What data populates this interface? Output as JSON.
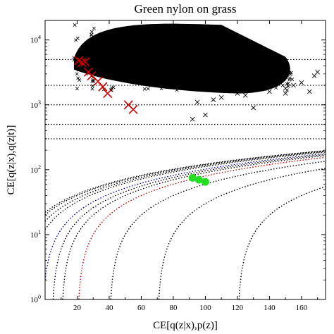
{
  "chart_data": {
    "type": "scatter",
    "title": "Green nylon on grass",
    "xlabel": "CE[q(z|x),p(z)]",
    "ylabel": "CE[q(z|x),q(z|t)]",
    "xlim": [
      0,
      175
    ],
    "ylim": [
      1,
      20000
    ],
    "yscale": "log",
    "grid": false,
    "x_ticks": [
      20,
      40,
      60,
      80,
      100,
      120,
      140,
      160
    ],
    "y_ticks": [
      1,
      10,
      100,
      1000,
      10000
    ],
    "y_tick_labels": [
      {
        "base": "10",
        "exp": "0"
      },
      {
        "base": "10",
        "exp": "1"
      },
      {
        "base": "10",
        "exp": "2"
      },
      {
        "base": "10",
        "exp": "3"
      },
      {
        "base": "10",
        "exp": "4"
      }
    ],
    "reference_lines": {
      "style": "dotted",
      "horizontal_levels": [
        5000,
        2000,
        1000,
        500,
        300
      ],
      "curves": [
        {
          "offset": 20,
          "color": "#000000"
        },
        {
          "offset": 22,
          "color": "#000000"
        },
        {
          "offset": 16,
          "color": "#000000"
        },
        {
          "offset": 12,
          "color": "#000000"
        },
        {
          "offset": 2,
          "color": "#0000aa"
        },
        {
          "offset": -4,
          "color": "#000000"
        },
        {
          "offset": -10,
          "color": "#000000"
        },
        {
          "offset": -20,
          "color": "#cc0000"
        },
        {
          "offset": -40,
          "color": "#000000"
        },
        {
          "offset": -70,
          "color": "#000000"
        },
        {
          "offset": -120,
          "color": "#000000"
        }
      ]
    },
    "series": [
      {
        "marker": "x",
        "color": "#000000",
        "cloud": {
          "x_min": 18,
          "x_max": 158,
          "y_min": 1500,
          "y_max": 18000
        },
        "points": [
          [
            95,
            1100
          ],
          [
            105,
            1200
          ],
          [
            110,
            1300
          ],
          [
            120,
            1500
          ],
          [
            130,
            900
          ],
          [
            125,
            1400
          ],
          [
            140,
            1600
          ],
          [
            150,
            1800
          ],
          [
            155,
            2000
          ],
          [
            160,
            2200
          ],
          [
            165,
            1600
          ],
          [
            168,
            2800
          ],
          [
            170,
            3200
          ],
          [
            100,
            700
          ],
          [
            92,
            600
          ],
          [
            130,
            1800
          ],
          [
            145,
            2600
          ],
          [
            150,
            1500
          ]
        ]
      },
      {
        "marker": "x",
        "color": "#cc0000",
        "points": [
          [
            21,
            4800
          ],
          [
            23,
            4500
          ],
          [
            25,
            4600
          ],
          [
            27,
            3200
          ],
          [
            29,
            2800
          ],
          [
            33,
            2300
          ],
          [
            36,
            1900
          ],
          [
            39,
            1500
          ],
          [
            52,
            1000
          ],
          [
            55,
            850
          ]
        ]
      },
      {
        "marker": "circle",
        "color": "#22dd22",
        "points": [
          [
            92,
            75
          ],
          [
            96,
            70
          ],
          [
            100,
            65
          ]
        ]
      }
    ]
  }
}
